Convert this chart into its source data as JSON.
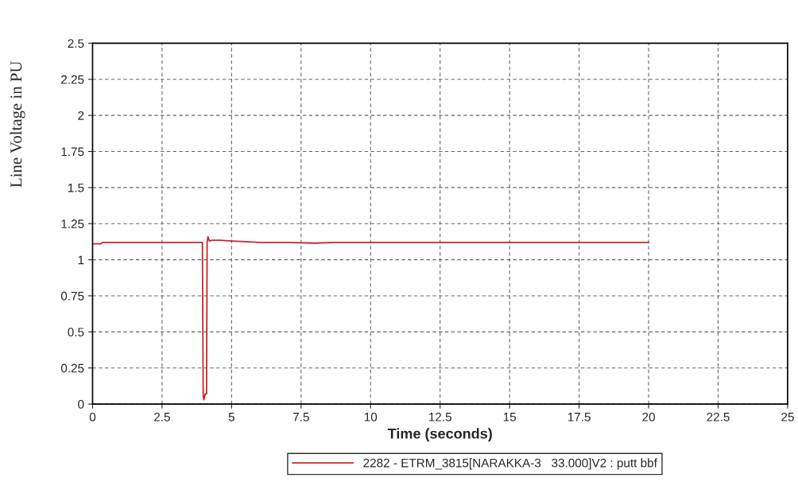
{
  "chart_data": {
    "type": "line",
    "xlabel": "Time (seconds)",
    "ylabel": "Line Voltage in PU",
    "series": [
      {
        "name": "2282 - ETRM_3815[NARAKKA-3   33.000]V2 : putt bbf",
        "color": "#c62828",
        "x": [
          0,
          0.3,
          0.35,
          3.95,
          3.98,
          4.0,
          4.05,
          4.1,
          4.12,
          4.15,
          4.2,
          4.3,
          4.6,
          5.0,
          5.5,
          6.0,
          7.0,
          8.0,
          8.7,
          10,
          15,
          20
        ],
        "values": [
          1.11,
          1.11,
          1.12,
          1.12,
          0.05,
          0.03,
          0.07,
          0.07,
          1.12,
          1.16,
          1.13,
          1.135,
          1.135,
          1.13,
          1.125,
          1.12,
          1.12,
          1.115,
          1.12,
          1.12,
          1.12,
          1.12
        ]
      }
    ],
    "xlim": [
      0,
      25
    ],
    "xticks": [
      0,
      2.5,
      5,
      7.5,
      10,
      12.5,
      15,
      17.5,
      20,
      22.5,
      25
    ],
    "ylim": [
      0,
      2.5
    ],
    "yticks": [
      0,
      0.25,
      0.5,
      0.75,
      1,
      1.25,
      1.5,
      1.75,
      2,
      2.25,
      2.5
    ],
    "grid": true,
    "legend": "bottom",
    "line_style": "solid",
    "marker": "none"
  }
}
